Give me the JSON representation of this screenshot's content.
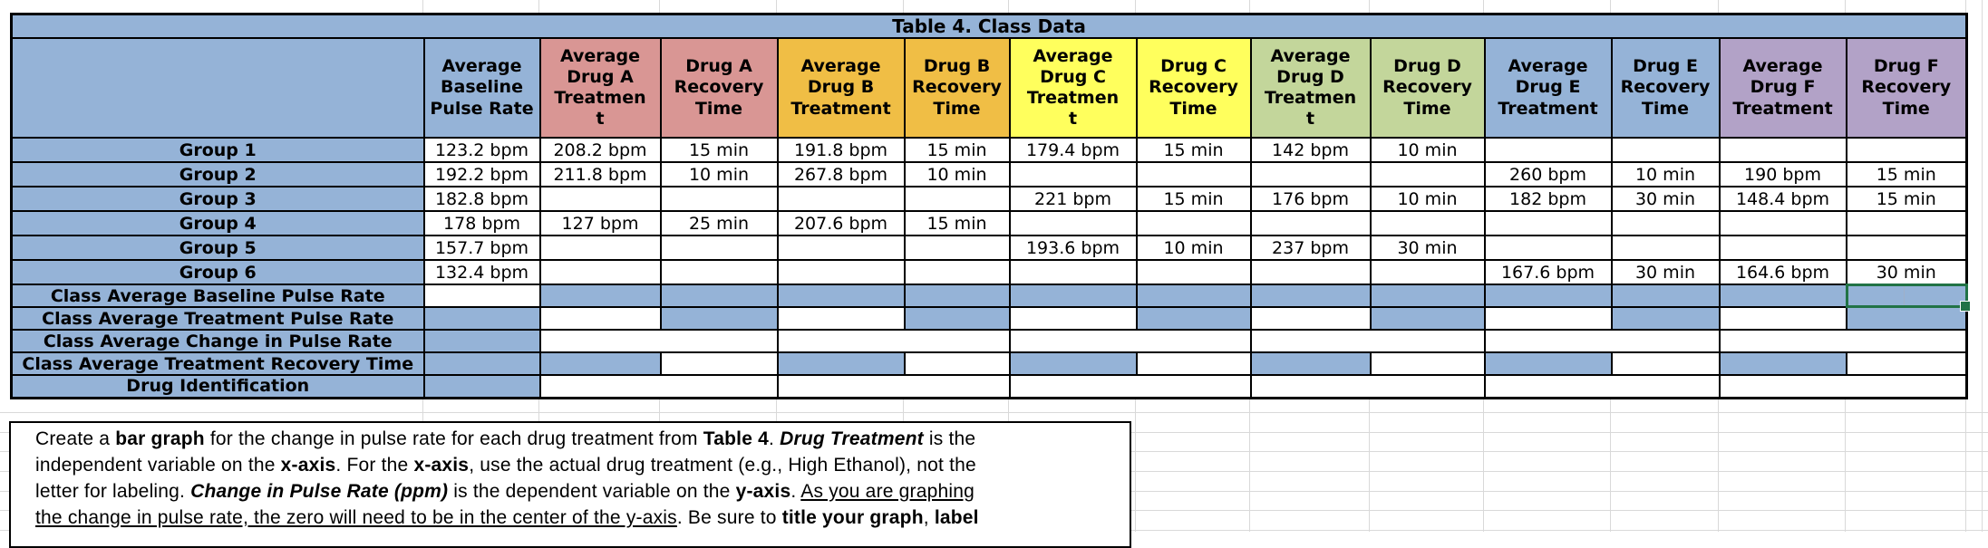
{
  "title": "Table 4.  Class Data",
  "colors": {
    "blue": "#95B3D7",
    "red": "#D99694",
    "orange": "#F0BE45",
    "yellow": "#FFFF5D",
    "olive": "#C3D69B",
    "purple": "#B2A2C7",
    "selection": "#217346",
    "gridline": "#D9D9D9"
  },
  "table": {
    "columns": [
      {
        "id": "avg-baseline-pulse-rate",
        "label": "Average\nBaseline\nPulse Rate",
        "color": "blue"
      },
      {
        "id": "avg-drug-a-treatment",
        "label": "Average\nDrug A\nTreatmen\nt",
        "color": "red"
      },
      {
        "id": "drug-a-recovery-time",
        "label": "Drug A\nRecovery\nTime",
        "color": "red"
      },
      {
        "id": "avg-drug-b-treatment",
        "label": "Average\nDrug B\nTreatment",
        "color": "orange"
      },
      {
        "id": "drug-b-recovery-time",
        "label": "Drug B\nRecovery\nTime",
        "color": "orange"
      },
      {
        "id": "avg-drug-c-treatment",
        "label": "Average\nDrug C\nTreatmen\nt",
        "color": "yellow"
      },
      {
        "id": "drug-c-recovery-time",
        "label": "Drug C\nRecovery\nTime",
        "color": "yellow"
      },
      {
        "id": "avg-drug-d-treatment",
        "label": "Average\nDrug D\nTreatmen\nt",
        "color": "olive"
      },
      {
        "id": "drug-d-recovery-time",
        "label": "Drug D\nRecovery\nTime",
        "color": "olive"
      },
      {
        "id": "avg-drug-e-treatment",
        "label": "Average\nDrug E\nTreatment",
        "color": "blue"
      },
      {
        "id": "drug-e-recovery-time",
        "label": "Drug E\nRecovery\nTime",
        "color": "blue"
      },
      {
        "id": "avg-drug-f-treatment",
        "label": "Average\nDrug F\nTreatment",
        "color": "purple"
      },
      {
        "id": "drug-f-recovery-time",
        "label": "Drug F\nRecovery\nTime",
        "color": "purple"
      }
    ],
    "groups": [
      {
        "label": "Group 1",
        "values": [
          "123.2 bpm",
          "208.2 bpm",
          "15 min",
          "191.8 bpm",
          "15 min",
          "179.4 bpm",
          "15 min",
          "142 bpm",
          "10 min",
          "",
          "",
          "",
          ""
        ]
      },
      {
        "label": "Group 2",
        "values": [
          "192.2 bpm",
          "211.8 bpm",
          "10 min",
          "267.8 bpm",
          "10 min",
          "",
          "",
          "",
          "",
          "260 bpm",
          "10 min",
          "190 bpm",
          "15 min"
        ]
      },
      {
        "label": "Group 3",
        "values": [
          "182.8 bpm",
          "",
          "",
          "",
          "",
          "221 bpm",
          "15 min",
          "176 bpm",
          "10 min",
          "182 bpm",
          "30 min",
          "148.4 bpm",
          "15 min"
        ]
      },
      {
        "label": "Group 4",
        "values": [
          "178 bpm",
          "127 bpm",
          "25 min",
          "207.6 bpm",
          "15 min",
          "",
          "",
          "",
          "",
          "",
          "",
          "",
          ""
        ]
      },
      {
        "label": "Group 5",
        "values": [
          "157.7 bpm",
          "",
          "",
          "",
          "",
          "193.6 bpm",
          "10 min",
          "237 bpm",
          "30 min",
          "",
          "",
          "",
          ""
        ]
      },
      {
        "label": "Group 6",
        "values": [
          "132.4 bpm",
          "",
          "",
          "",
          "",
          "",
          "",
          "",
          "",
          "167.6 bpm",
          "30 min",
          "164.6 bpm",
          "30 min"
        ]
      }
    ],
    "summary_rows": [
      {
        "label": "Class Average Baseline Pulse Rate",
        "cells": [
          {
            "fill": "white"
          },
          {
            "fill": "blue"
          },
          {
            "fill": "blue"
          },
          {
            "fill": "blue"
          },
          {
            "fill": "blue"
          },
          {
            "fill": "blue"
          },
          {
            "fill": "blue"
          },
          {
            "fill": "blue"
          },
          {
            "fill": "blue"
          },
          {
            "fill": "blue"
          },
          {
            "fill": "blue"
          },
          {
            "fill": "blue"
          },
          {
            "fill": "blue",
            "selected": true
          }
        ]
      },
      {
        "label": "Class Average Treatment Pulse Rate",
        "cells": [
          {
            "fill": "blue"
          },
          {
            "fill": "white"
          },
          {
            "fill": "blue"
          },
          {
            "fill": "white"
          },
          {
            "fill": "blue"
          },
          {
            "fill": "white"
          },
          {
            "fill": "blue"
          },
          {
            "fill": "white"
          },
          {
            "fill": "blue"
          },
          {
            "fill": "white"
          },
          {
            "fill": "blue"
          },
          {
            "fill": "white"
          },
          {
            "fill": "blue"
          }
        ]
      },
      {
        "label": "Class Average Change in Pulse Rate",
        "cells": [
          {
            "fill": "blue"
          },
          {
            "fill": "white",
            "colspan": 2
          },
          {
            "fill": "white",
            "colspan": 2
          },
          {
            "fill": "white",
            "colspan": 2
          },
          {
            "fill": "white",
            "colspan": 2
          },
          {
            "fill": "white",
            "colspan": 2
          },
          {
            "fill": "white",
            "colspan": 2
          }
        ]
      },
      {
        "label": "Class Average Treatment Recovery Time",
        "cells": [
          {
            "fill": "blue"
          },
          {
            "fill": "blue"
          },
          {
            "fill": "white"
          },
          {
            "fill": "blue"
          },
          {
            "fill": "white"
          },
          {
            "fill": "blue"
          },
          {
            "fill": "white"
          },
          {
            "fill": "blue"
          },
          {
            "fill": "white"
          },
          {
            "fill": "blue"
          },
          {
            "fill": "white"
          },
          {
            "fill": "blue"
          },
          {
            "fill": "white"
          }
        ]
      },
      {
        "label": "Drug Identification",
        "cells": [
          {
            "fill": "blue"
          },
          {
            "fill": "white",
            "colspan": 2
          },
          {
            "fill": "white",
            "colspan": 2
          },
          {
            "fill": "white",
            "colspan": 2
          },
          {
            "fill": "white",
            "colspan": 2
          },
          {
            "fill": "white",
            "colspan": 2
          },
          {
            "fill": "white",
            "colspan": 2
          }
        ]
      }
    ]
  },
  "instructions": {
    "lines": [
      [
        {
          "text": "Create a ",
          "style": "n"
        },
        {
          "text": "bar graph",
          "style": "b"
        },
        {
          "text": " for the change in pulse rate for each drug treatment from ",
          "style": "n"
        },
        {
          "text": "Table 4",
          "style": "b"
        },
        {
          "text": ".  ",
          "style": "n"
        },
        {
          "text": "Drug Treatment",
          "style": "bi"
        },
        {
          "text": " is the",
          "style": "n"
        }
      ],
      [
        {
          "text": "independent variable on the ",
          "style": "n"
        },
        {
          "text": "x-axis",
          "style": "b"
        },
        {
          "text": ".  For the ",
          "style": "n"
        },
        {
          "text": "x-axis",
          "style": "b"
        },
        {
          "text": ", use the actual drug treatment (e.g., High Ethanol), not the",
          "style": "n"
        }
      ],
      [
        {
          "text": "letter for labeling.  ",
          "style": "n"
        },
        {
          "text": "Change in Pulse Rate (ppm)",
          "style": "bi"
        },
        {
          "text": " is the dependent variable on the ",
          "style": "n"
        },
        {
          "text": "y-axis",
          "style": "b"
        },
        {
          "text": ".  ",
          "style": "n"
        },
        {
          "text": "As you are graphing",
          "style": "u"
        }
      ],
      [
        {
          "text": "the change in pulse rate, the zero will need to be in the center of the y-axis",
          "style": "u"
        },
        {
          "text": ".  Be sure to ",
          "style": "n"
        },
        {
          "text": "title your graph",
          "style": "b"
        },
        {
          "text": ", ",
          "style": "n"
        },
        {
          "text": "label",
          "style": "b"
        }
      ]
    ]
  }
}
